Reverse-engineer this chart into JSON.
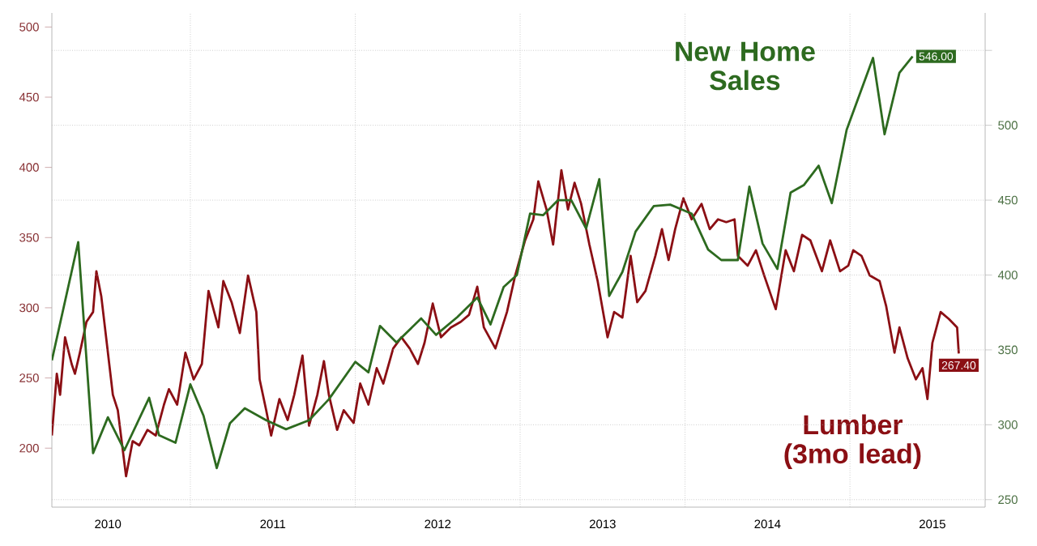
{
  "chart_data": {
    "type": "line",
    "grid": true,
    "marker": "none",
    "xlim": [
      2010.16,
      2015.82
    ],
    "xticks": [
      {
        "value": 2010.5,
        "label": "2010"
      },
      {
        "value": 2011.5,
        "label": "2011"
      },
      {
        "value": 2012.5,
        "label": "2012"
      },
      {
        "value": 2013.5,
        "label": "2013"
      },
      {
        "value": 2014.5,
        "label": "2014"
      },
      {
        "value": 2015.5,
        "label": "2015"
      },
      {
        "value": 2011,
        "label": null
      },
      {
        "value": 2012,
        "label": null
      },
      {
        "value": 2013,
        "label": null
      },
      {
        "value": 2014,
        "label": null
      },
      {
        "value": 2015,
        "label": null
      }
    ],
    "ylim": [
      158,
      510
    ],
    "yticks": [
      200,
      250,
      300,
      350,
      400,
      450,
      500
    ],
    "y2lim": [
      245,
      575
    ],
    "y2ticks": [
      250,
      300,
      350,
      400,
      450,
      500,
      {
        "value": 550,
        "label": null
      }
    ],
    "series": [
      {
        "name": "Lumber (3mo lead)",
        "color": "#8b0f14",
        "x": [
          2010.16,
          2010.19,
          2010.21,
          2010.24,
          2010.28,
          2010.3,
          2010.33,
          2010.37,
          2010.41,
          2010.43,
          2010.46,
          2010.5,
          2010.53,
          2010.56,
          2010.61,
          2010.65,
          2010.69,
          2010.74,
          2010.79,
          2010.84,
          2010.87,
          2010.92,
          2010.97,
          2011.02,
          2011.07,
          2011.11,
          2011.17,
          2011.2,
          2011.25,
          2011.3,
          2011.35,
          2011.4,
          2011.42,
          2011.46,
          2011.49,
          2011.54,
          2011.59,
          2011.63,
          2011.68,
          2011.72,
          2011.77,
          2011.81,
          2011.84,
          2011.89,
          2011.93,
          2011.99,
          2012.03,
          2012.08,
          2012.13,
          2012.17,
          2012.23,
          2012.28,
          2012.33,
          2012.38,
          2012.42,
          2012.47,
          2012.52,
          2012.58,
          2012.64,
          2012.69,
          2012.74,
          2012.78,
          2012.85,
          2012.92,
          2012.97,
          2013.03,
          2013.08,
          2013.11,
          2013.16,
          2013.2,
          2013.25,
          2013.29,
          2013.33,
          2013.37,
          2013.42,
          2013.47,
          2013.53,
          2013.57,
          2013.62,
          2013.67,
          2013.71,
          2013.76,
          2013.82,
          2013.86,
          2013.9,
          2013.94,
          2013.99,
          2014.04,
          2014.1,
          2014.15,
          2014.2,
          2014.25,
          2014.3,
          2014.32,
          2014.38,
          2014.43,
          2014.48,
          2014.55,
          2014.61,
          2014.66,
          2014.71,
          2014.76,
          2014.83,
          2014.88,
          2014.94,
          2014.99,
          2015.02,
          2015.07,
          2015.12,
          2015.18,
          2015.22,
          2015.27,
          2015.3,
          2015.35,
          2015.4,
          2015.44,
          2015.47,
          2015.5,
          2015.55,
          2015.6,
          2015.65,
          2015.66
        ],
        "values": [
          209,
          253,
          238,
          279,
          260,
          253,
          268,
          290,
          297,
          326,
          308,
          268,
          238,
          227,
          180,
          205,
          202,
          213,
          209,
          231,
          242,
          231,
          268,
          249,
          260,
          312,
          286,
          319,
          304,
          282,
          323,
          297,
          249,
          227,
          209,
          235,
          220,
          238,
          266,
          216,
          238,
          262,
          238,
          213,
          227,
          218,
          246,
          231,
          257,
          246,
          271,
          279,
          271,
          260,
          275,
          303,
          279,
          286,
          290,
          295,
          315,
          286,
          271,
          297,
          323,
          348,
          363,
          390,
          370,
          345,
          398,
          370,
          389,
          374,
          345,
          319,
          279,
          297,
          293,
          337,
          304,
          312,
          337,
          356,
          334,
          356,
          378,
          363,
          374,
          356,
          363,
          361,
          363,
          337,
          330,
          341,
          323,
          299,
          341,
          326,
          352,
          348,
          326,
          348,
          326,
          330,
          341,
          337,
          323,
          319,
          301,
          268,
          286,
          264,
          249,
          257,
          235,
          275,
          297,
          292,
          286,
          267.4
        ],
        "value_labels": [
          null,
          null,
          null,
          null,
          null,
          null,
          null,
          null,
          null,
          null,
          null,
          null,
          null,
          null,
          null,
          null,
          null,
          null,
          null,
          null,
          null,
          null,
          null,
          null,
          null,
          null,
          null,
          null,
          null,
          null,
          null,
          null,
          null,
          null,
          null,
          null,
          null,
          null,
          null,
          null,
          null,
          null,
          null,
          null,
          null,
          null,
          null,
          null,
          null,
          null,
          null,
          null,
          null,
          null,
          null,
          null,
          null,
          null,
          null,
          null,
          null,
          null,
          null,
          null,
          null,
          null,
          null,
          null,
          null,
          null,
          null,
          null,
          null,
          null,
          null,
          null,
          null,
          null,
          null,
          null,
          null,
          null,
          null,
          null,
          null,
          null,
          null,
          null,
          null,
          null,
          null,
          null,
          null,
          null,
          null,
          null,
          null,
          null,
          null,
          null,
          null,
          null,
          null,
          null,
          null,
          null,
          null,
          null,
          null,
          null,
          null,
          null,
          null,
          null,
          null,
          null,
          null,
          null,
          null,
          null,
          null,
          "267.40"
        ]
      },
      {
        "name": "New Home Sales",
        "color": "#2d6a1f",
        "axis": "y2",
        "x": [
          2010.16,
          2010.32,
          2010.41,
          2010.5,
          2010.6,
          2010.75,
          2010.81,
          2010.91,
          2011.0,
          2011.08,
          2011.16,
          2011.24,
          2011.33,
          2011.46,
          2011.58,
          2011.72,
          2011.84,
          2012.0,
          2012.08,
          2012.15,
          2012.25,
          2012.4,
          2012.49,
          2012.62,
          2012.74,
          2012.82,
          2012.9,
          2012.98,
          2013.06,
          2013.14,
          2013.23,
          2013.31,
          2013.4,
          2013.48,
          2013.54,
          2013.62,
          2013.7,
          2013.81,
          2013.91,
          2014.04,
          2014.14,
          2014.22,
          2014.32,
          2014.39,
          2014.47,
          2014.56,
          2014.64,
          2014.72,
          2014.81,
          2014.89,
          2014.98,
          2015.14,
          2015.21,
          2015.3,
          2015.38
        ],
        "values": [
          343,
          422,
          281,
          305,
          283,
          318,
          293,
          288,
          327,
          306,
          271,
          301,
          311,
          303,
          297,
          303,
          317,
          342,
          335,
          366,
          355,
          371,
          360,
          372,
          385,
          367,
          392,
          400,
          441,
          440,
          450,
          450,
          431,
          464,
          386,
          402,
          429,
          446,
          447,
          441,
          417,
          410,
          410,
          459,
          421,
          404,
          455,
          460,
          473,
          448,
          497,
          545,
          494,
          535,
          546
        ],
        "value_labels": [
          null,
          null,
          null,
          null,
          null,
          null,
          null,
          null,
          null,
          null,
          null,
          null,
          null,
          null,
          null,
          null,
          null,
          null,
          null,
          null,
          null,
          null,
          null,
          null,
          null,
          null,
          null,
          null,
          null,
          null,
          null,
          null,
          null,
          null,
          null,
          null,
          null,
          null,
          null,
          null,
          null,
          null,
          null,
          null,
          null,
          null,
          null,
          null,
          null,
          null,
          null,
          null,
          null,
          null,
          "546.00"
        ]
      }
    ]
  }
}
